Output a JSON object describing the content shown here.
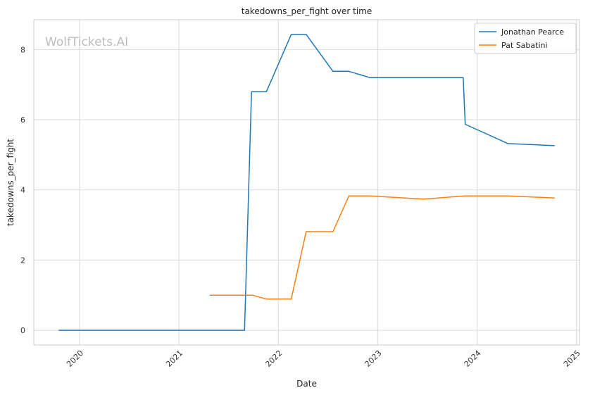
{
  "chart_data": {
    "type": "line",
    "title": "takedowns_per_fight over time",
    "xlabel": "Date",
    "ylabel": "takedowns_per_fight",
    "watermark": "WolfTickets.AI",
    "xlim": [
      2019.54,
      2025.03
    ],
    "ylim": [
      -0.42,
      8.85
    ],
    "x_ticks": [
      2020,
      2021,
      2022,
      2023,
      2024,
      2025
    ],
    "x_tick_labels": [
      "2020",
      "2021",
      "2022",
      "2023",
      "2024",
      "2025"
    ],
    "y_ticks": [
      0,
      2,
      4,
      6,
      8
    ],
    "y_tick_labels": [
      "0",
      "2",
      "4",
      "6",
      "8"
    ],
    "grid": true,
    "legend_position": "top-right",
    "series": [
      {
        "name": "Jonathan Pearce",
        "color": "#1f77b4",
        "x": [
          2019.79,
          2020.5,
          2021.0,
          2021.66,
          2021.73,
          2021.88,
          2022.13,
          2022.28,
          2022.55,
          2022.71,
          2022.92,
          2023.5,
          2023.86,
          2023.88,
          2024.31,
          2024.78
        ],
        "y": [
          0,
          0,
          0,
          0,
          6.8,
          6.8,
          8.43,
          8.43,
          7.38,
          7.38,
          7.2,
          7.2,
          7.2,
          5.87,
          5.32,
          5.26
        ]
      },
      {
        "name": "Pat Sabatini",
        "color": "#ff7f0e",
        "x": [
          2021.31,
          2021.74,
          2021.88,
          2022.13,
          2022.28,
          2022.55,
          2022.71,
          2022.92,
          2023.46,
          2023.88,
          2024.31,
          2024.78
        ],
        "y": [
          1.0,
          1.0,
          0.89,
          0.89,
          2.81,
          2.81,
          3.83,
          3.83,
          3.74,
          3.83,
          3.83,
          3.77
        ]
      }
    ]
  }
}
